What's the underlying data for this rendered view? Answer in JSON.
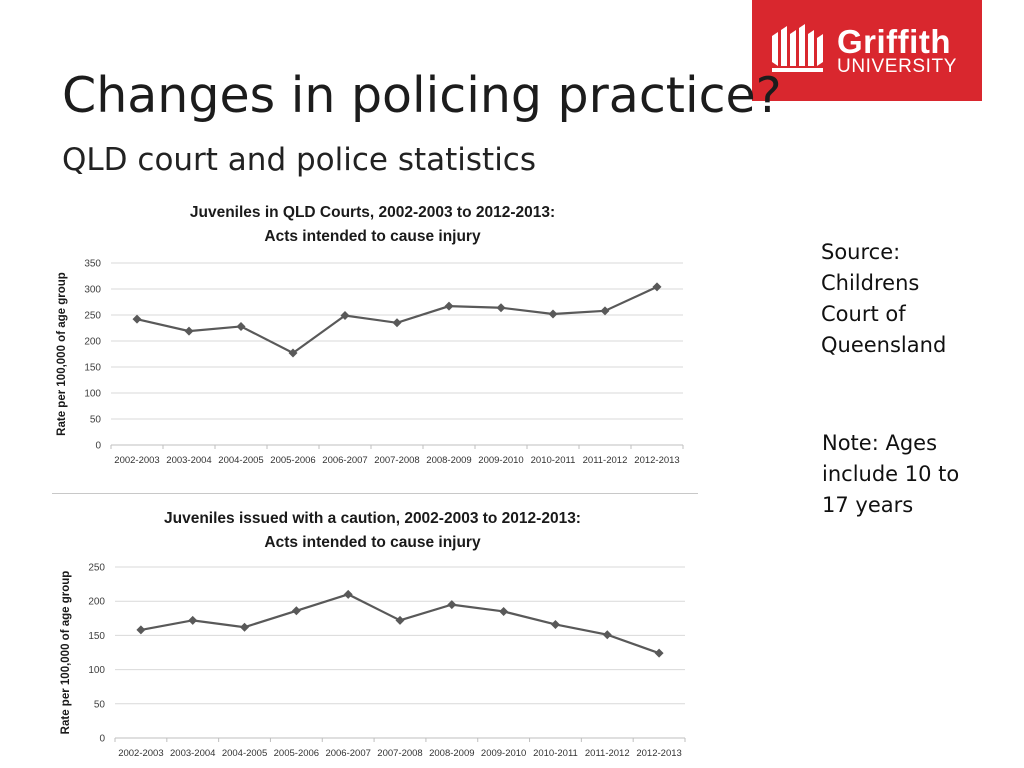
{
  "header": {
    "title": "Changes in policing practice?",
    "subtitle": "QLD court and police statistics"
  },
  "logo": {
    "line1": "Griffith",
    "line2": "UNIVERSITY",
    "background": "#d9272e"
  },
  "notes": {
    "source": "Source: Childrens Court of Queensland",
    "note": "Note: Ages include 10 to 17 years"
  },
  "chart_data": [
    {
      "type": "line",
      "title": "Juveniles in QLD Courts, 2002-2003 to 2012-2013:",
      "subtitle": "Acts intended to cause injury",
      "ylabel": "Rate per 100,000 of age group",
      "xlabel": "",
      "categories": [
        "2002-2003",
        "2003-2004",
        "2004-2005",
        "2005-2006",
        "2006-2007",
        "2007-2008",
        "2008-2009",
        "2009-2010",
        "2010-2011",
        "2011-2012",
        "2012-2013"
      ],
      "values": [
        242,
        219,
        228,
        177,
        249,
        235,
        267,
        264,
        252,
        258,
        304
      ],
      "ylim": [
        0,
        350
      ],
      "yticks": [
        0,
        50,
        100,
        150,
        200,
        250,
        300,
        350
      ],
      "grid": true,
      "color": "#595959"
    },
    {
      "type": "line",
      "title": "Juveniles issued with a caution, 2002-2003 to 2012-2013:",
      "subtitle": "Acts intended to cause injury",
      "ylabel": "Rate per 100,000 of age group",
      "xlabel": "",
      "categories": [
        "2002-2003",
        "2003-2004",
        "2004-2005",
        "2005-2006",
        "2006-2007",
        "2007-2008",
        "2008-2009",
        "2009-2010",
        "2010-2011",
        "2011-2012",
        "2012-2013"
      ],
      "values": [
        158,
        172,
        162,
        186,
        210,
        172,
        195,
        185,
        166,
        151,
        124
      ],
      "ylim": [
        0,
        250
      ],
      "yticks": [
        0,
        50,
        100,
        150,
        200,
        250
      ],
      "grid": true,
      "color": "#595959"
    }
  ]
}
